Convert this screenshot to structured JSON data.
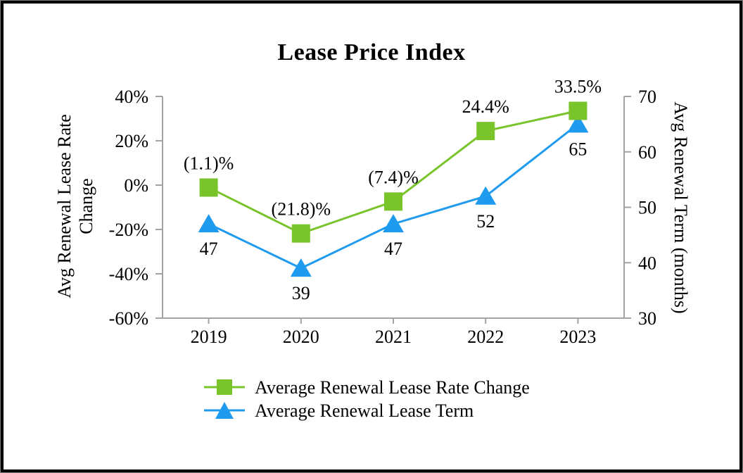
{
  "chart_data": {
    "type": "line",
    "title": "Lease Price Index",
    "categories": [
      "2019",
      "2020",
      "2021",
      "2022",
      "2023"
    ],
    "series": [
      {
        "name": "Average Renewal Lease Rate Change",
        "axis": "left",
        "marker": "square",
        "color": "#79C42B",
        "values": [
          -1.1,
          -21.8,
          -7.4,
          24.4,
          33.5
        ],
        "point_labels": [
          "(1.1)%",
          "(21.8)%",
          "(7.4)%",
          "24.4%",
          "33.5%"
        ],
        "label_position": "above"
      },
      {
        "name": "Average Renewal Lease Term",
        "axis": "right",
        "marker": "triangle",
        "color": "#1E9BEE",
        "values": [
          47,
          39,
          47,
          52,
          65
        ],
        "point_labels": [
          "47",
          "39",
          "47",
          "52",
          "65"
        ],
        "label_position": "below"
      }
    ],
    "axes": {
      "left": {
        "label": "Avg Renewal Lease Rate Change",
        "ticks": [
          "40%",
          "20%",
          "0%",
          "-20%",
          "-40%",
          "-60%"
        ],
        "max": 40,
        "min": -60
      },
      "right": {
        "label": "Avg Renewal Term (months)",
        "ticks": [
          "70",
          "60",
          "50",
          "40",
          "30"
        ],
        "max": 70,
        "min": 30
      }
    },
    "legend_position": "bottom",
    "grid": false
  },
  "colors": {
    "axis_line": "#A3A3A3",
    "text": "#000000",
    "rate_change_green": "#79C42B",
    "lease_term_blue": "#1E9BEE"
  }
}
